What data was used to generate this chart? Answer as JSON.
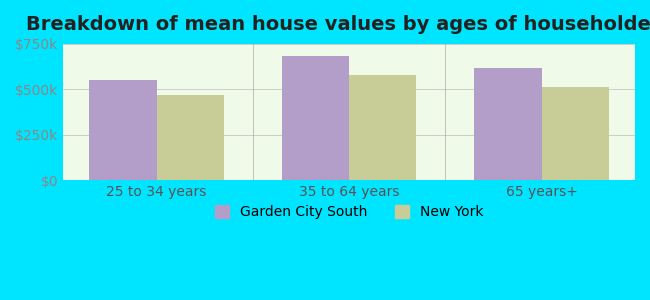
{
  "title": "Breakdown of mean house values by ages of householders",
  "categories": [
    "25 to 34 years",
    "35 to 64 years",
    "65 years+"
  ],
  "garden_city_south": [
    550000,
    685000,
    620000
  ],
  "new_york": [
    470000,
    580000,
    510000
  ],
  "ylim": [
    0,
    750000
  ],
  "yticks": [
    0,
    250000,
    500000,
    750000
  ],
  "ytick_labels": [
    "$0",
    "$250k",
    "$500k",
    "$750k"
  ],
  "bar_color_gcs": "#b29ec8",
  "bar_color_ny": "#c8cc96",
  "background_outer": "#00e5ff",
  "background_inner": "#f0fae8",
  "legend_label_gcs": "Garden City South",
  "legend_label_ny": "New York",
  "title_fontsize": 14,
  "tick_fontsize": 10,
  "legend_fontsize": 10,
  "bar_width": 0.35
}
